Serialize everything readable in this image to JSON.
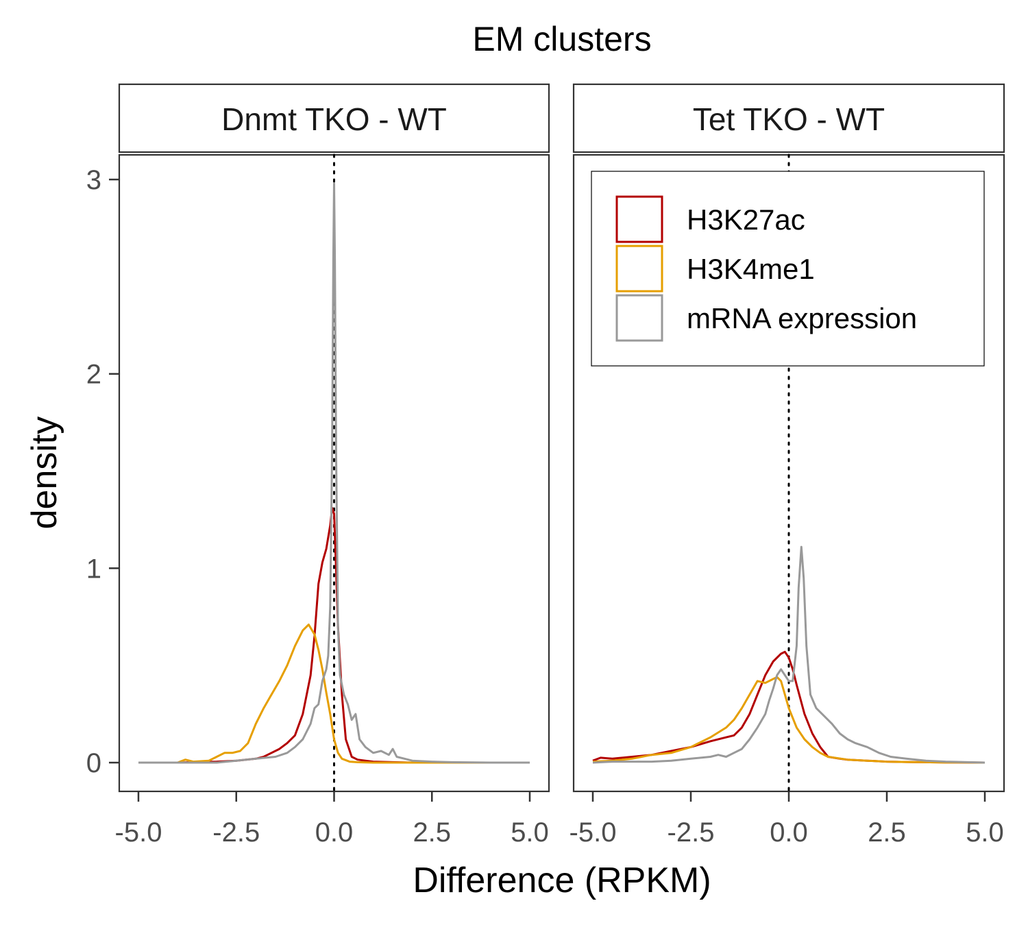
{
  "chart_data": {
    "type": "line",
    "title": "EM clusters",
    "xlabel": "Difference (RPKM)",
    "ylabel": "density",
    "xlim": [
      -5,
      5
    ],
    "ylim": [
      0,
      3
    ],
    "x_ticks": [
      "-5.0",
      "-2.5",
      "0.0",
      "2.5",
      "5.0"
    ],
    "y_ticks": [
      "0",
      "1",
      "2",
      "3"
    ],
    "reference_line": {
      "x": 0,
      "style": "dotted"
    },
    "legend": {
      "position": "inside-top-right-of-second-panel"
    },
    "colors": {
      "H3K27ac": "#b30000",
      "H3K4me1": "#e69f00",
      "mRNA expression": "#999999"
    },
    "panels": [
      {
        "label": "Dnmt TKO - WT",
        "series": [
          {
            "name": "H3K27ac",
            "points": [
              [
                -5,
                0
              ],
              [
                -4,
                0
              ],
              [
                -3.5,
                0.003
              ],
              [
                -3,
                0.005
              ],
              [
                -2.5,
                0.01
              ],
              [
                -2,
                0.02
              ],
              [
                -1.8,
                0.03
              ],
              [
                -1.6,
                0.05
              ],
              [
                -1.4,
                0.07
              ],
              [
                -1.2,
                0.1
              ],
              [
                -1,
                0.14
              ],
              [
                -0.8,
                0.25
              ],
              [
                -0.6,
                0.45
              ],
              [
                -0.5,
                0.65
              ],
              [
                -0.4,
                0.92
              ],
              [
                -0.3,
                1.03
              ],
              [
                -0.2,
                1.1
              ],
              [
                -0.1,
                1.22
              ],
              [
                -0.05,
                1.31
              ],
              [
                0,
                1.28
              ],
              [
                0.05,
                1.0
              ],
              [
                0.1,
                0.7
              ],
              [
                0.2,
                0.35
              ],
              [
                0.3,
                0.12
              ],
              [
                0.45,
                0.03
              ],
              [
                0.6,
                0.015
              ],
              [
                0.8,
                0.01
              ],
              [
                1,
                0.005
              ],
              [
                1.5,
                0.002
              ],
              [
                2,
                0
              ],
              [
                3,
                0
              ],
              [
                5,
                0
              ]
            ]
          },
          {
            "name": "H3K4me1",
            "points": [
              [
                -5,
                0
              ],
              [
                -4,
                0
              ],
              [
                -3.8,
                0.015
              ],
              [
                -3.6,
                0.005
              ],
              [
                -3.2,
                0.01
              ],
              [
                -3,
                0.03
              ],
              [
                -2.8,
                0.05
              ],
              [
                -2.6,
                0.05
              ],
              [
                -2.4,
                0.06
              ],
              [
                -2.2,
                0.1
              ],
              [
                -2,
                0.2
              ],
              [
                -1.8,
                0.28
              ],
              [
                -1.6,
                0.35
              ],
              [
                -1.4,
                0.42
              ],
              [
                -1.2,
                0.5
              ],
              [
                -1,
                0.6
              ],
              [
                -0.8,
                0.68
              ],
              [
                -0.65,
                0.71
              ],
              [
                -0.5,
                0.66
              ],
              [
                -0.4,
                0.58
              ],
              [
                -0.3,
                0.48
              ],
              [
                -0.2,
                0.36
              ],
              [
                -0.1,
                0.25
              ],
              [
                0,
                0.12
              ],
              [
                0.1,
                0.05
              ],
              [
                0.2,
                0.02
              ],
              [
                0.4,
                0.005
              ],
              [
                0.6,
                0.002
              ],
              [
                1,
                0
              ],
              [
                5,
                0
              ]
            ]
          },
          {
            "name": "mRNA expression",
            "points": [
              [
                -5,
                0
              ],
              [
                -3,
                0
              ],
              [
                -2.5,
                0.01
              ],
              [
                -2,
                0.02
              ],
              [
                -1.5,
                0.03
              ],
              [
                -1.2,
                0.05
              ],
              [
                -1,
                0.08
              ],
              [
                -0.8,
                0.12
              ],
              [
                -0.6,
                0.2
              ],
              [
                -0.5,
                0.28
              ],
              [
                -0.4,
                0.3
              ],
              [
                -0.3,
                0.42
              ],
              [
                -0.2,
                0.48
              ],
              [
                -0.15,
                0.55
              ],
              [
                -0.1,
                0.8
              ],
              [
                -0.05,
                1.6
              ],
              [
                -0.02,
                2.6
              ],
              [
                0,
                2.98
              ],
              [
                0.02,
                2.6
              ],
              [
                0.05,
                1.6
              ],
              [
                0.1,
                0.7
              ],
              [
                0.15,
                0.45
              ],
              [
                0.25,
                0.35
              ],
              [
                0.35,
                0.3
              ],
              [
                0.45,
                0.22
              ],
              [
                0.55,
                0.25
              ],
              [
                0.65,
                0.12
              ],
              [
                0.8,
                0.08
              ],
              [
                1,
                0.05
              ],
              [
                1.2,
                0.06
              ],
              [
                1.4,
                0.04
              ],
              [
                1.5,
                0.07
              ],
              [
                1.6,
                0.03
              ],
              [
                1.8,
                0.02
              ],
              [
                2,
                0.01
              ],
              [
                2.5,
                0.005
              ],
              [
                3,
                0.002
              ],
              [
                4,
                0
              ],
              [
                5,
                0
              ]
            ]
          }
        ]
      },
      {
        "label": "Tet TKO - WT",
        "series": [
          {
            "name": "H3K27ac",
            "points": [
              [
                -5,
                0.01
              ],
              [
                -4.8,
                0.025
              ],
              [
                -4.5,
                0.02
              ],
              [
                -4,
                0.03
              ],
              [
                -3.5,
                0.04
              ],
              [
                -3,
                0.06
              ],
              [
                -2.5,
                0.08
              ],
              [
                -2,
                0.11
              ],
              [
                -1.6,
                0.13
              ],
              [
                -1.4,
                0.14
              ],
              [
                -1.2,
                0.18
              ],
              [
                -1,
                0.25
              ],
              [
                -0.8,
                0.35
              ],
              [
                -0.6,
                0.45
              ],
              [
                -0.4,
                0.52
              ],
              [
                -0.2,
                0.56
              ],
              [
                -0.1,
                0.57
              ],
              [
                0,
                0.54
              ],
              [
                0.1,
                0.48
              ],
              [
                0.2,
                0.4
              ],
              [
                0.4,
                0.25
              ],
              [
                0.6,
                0.15
              ],
              [
                0.8,
                0.08
              ],
              [
                1,
                0.03
              ],
              [
                1.3,
                0.02
              ],
              [
                1.5,
                0.015
              ],
              [
                2,
                0.01
              ],
              [
                2.5,
                0.005
              ],
              [
                3,
                0.003
              ],
              [
                4,
                0.001
              ],
              [
                5,
                0
              ]
            ]
          },
          {
            "name": "H3K4me1",
            "points": [
              [
                -5,
                0.005
              ],
              [
                -4.5,
                0.01
              ],
              [
                -4,
                0.02
              ],
              [
                -3.5,
                0.04
              ],
              [
                -3,
                0.05
              ],
              [
                -2.5,
                0.08
              ],
              [
                -2,
                0.13
              ],
              [
                -1.6,
                0.18
              ],
              [
                -1.4,
                0.22
              ],
              [
                -1.2,
                0.28
              ],
              [
                -1,
                0.35
              ],
              [
                -0.8,
                0.42
              ],
              [
                -0.6,
                0.41
              ],
              [
                -0.4,
                0.43
              ],
              [
                -0.3,
                0.44
              ],
              [
                -0.2,
                0.42
              ],
              [
                -0.1,
                0.35
              ],
              [
                0,
                0.28
              ],
              [
                0.2,
                0.18
              ],
              [
                0.4,
                0.12
              ],
              [
                0.6,
                0.08
              ],
              [
                0.8,
                0.05
              ],
              [
                1,
                0.03
              ],
              [
                1.5,
                0.015
              ],
              [
                2,
                0.01
              ],
              [
                2.5,
                0.005
              ],
              [
                3,
                0.003
              ],
              [
                4,
                0.001
              ],
              [
                5,
                0
              ]
            ]
          },
          {
            "name": "mRNA expression",
            "points": [
              [
                -5,
                0
              ],
              [
                -4.5,
                0.005
              ],
              [
                -4,
                0.005
              ],
              [
                -3.5,
                0.005
              ],
              [
                -3,
                0.01
              ],
              [
                -2.5,
                0.02
              ],
              [
                -2,
                0.03
              ],
              [
                -1.8,
                0.04
              ],
              [
                -1.6,
                0.03
              ],
              [
                -1.4,
                0.05
              ],
              [
                -1.2,
                0.07
              ],
              [
                -1,
                0.12
              ],
              [
                -0.8,
                0.18
              ],
              [
                -0.6,
                0.25
              ],
              [
                -0.5,
                0.32
              ],
              [
                -0.4,
                0.38
              ],
              [
                -0.3,
                0.45
              ],
              [
                -0.2,
                0.48
              ],
              [
                -0.1,
                0.45
              ],
              [
                0,
                0.42
              ],
              [
                0.1,
                0.42
              ],
              [
                0.2,
                0.6
              ],
              [
                0.25,
                0.9
              ],
              [
                0.32,
                1.11
              ],
              [
                0.38,
                0.95
              ],
              [
                0.45,
                0.6
              ],
              [
                0.55,
                0.35
              ],
              [
                0.7,
                0.28
              ],
              [
                0.9,
                0.24
              ],
              [
                1.1,
                0.2
              ],
              [
                1.3,
                0.15
              ],
              [
                1.5,
                0.12
              ],
              [
                1.7,
                0.1
              ],
              [
                2,
                0.08
              ],
              [
                2.3,
                0.05
              ],
              [
                2.6,
                0.03
              ],
              [
                3,
                0.02
              ],
              [
                3.5,
                0.01
              ],
              [
                4,
                0.005
              ],
              [
                5,
                0
              ]
            ]
          }
        ]
      }
    ]
  }
}
